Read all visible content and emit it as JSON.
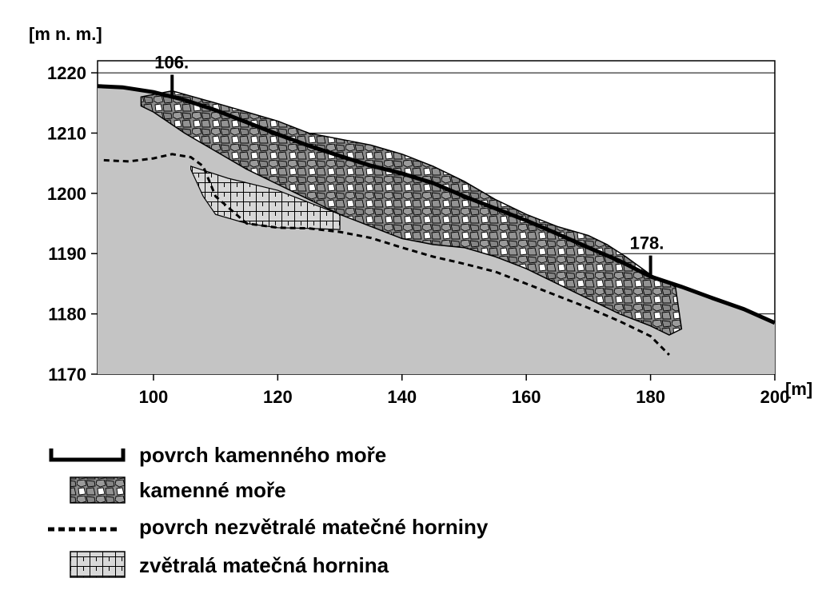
{
  "chart_data": {
    "type": "area",
    "title": "",
    "ylabel": "[m n. m.]",
    "xlabel": "[m]",
    "xlim": [
      91,
      200
    ],
    "ylim": [
      1170,
      1222
    ],
    "xticks": [
      100,
      120,
      140,
      160,
      180,
      200
    ],
    "yticks": [
      1170,
      1180,
      1190,
      1200,
      1210,
      1220
    ],
    "grid": "horizontal",
    "annotations": [
      {
        "label": "106.",
        "x": 103,
        "y": 1216.5
      },
      {
        "label": "178.",
        "x": 180,
        "y": 1186.5
      }
    ],
    "series": [
      {
        "name": "povrch kamenného moře",
        "x": [
          91,
          95,
          100,
          105,
          110,
          115,
          120,
          125,
          130,
          135,
          140,
          145,
          150,
          155,
          160,
          165,
          170,
          175,
          180,
          185,
          190,
          195,
          200
        ],
        "y": [
          1217.8,
          1217.6,
          1216.8,
          1215.5,
          1213.8,
          1211.8,
          1209.8,
          1207.9,
          1206.2,
          1204.6,
          1203.3,
          1201.7,
          1199.5,
          1197.5,
          1195.5,
          1193.3,
          1191.0,
          1188.8,
          1186.2,
          1184.5,
          1182.6,
          1180.8,
          1178.5
        ]
      },
      {
        "name": "kamenné moře",
        "top_x": [
          98,
          103,
          110,
          115,
          120,
          125,
          130,
          135,
          140,
          145,
          150,
          155,
          160,
          165,
          170,
          173,
          176,
          180,
          184
        ],
        "top_y": [
          1216.0,
          1217.0,
          1215.0,
          1213.5,
          1212.0,
          1210.0,
          1209.0,
          1208.0,
          1206.5,
          1204.5,
          1202.0,
          1199.0,
          1196.5,
          1194.5,
          1193.0,
          1191.5,
          1189.5,
          1186.5,
          1184.5
        ],
        "bottom_x": [
          185,
          183,
          180,
          175,
          170,
          165,
          160,
          155,
          150,
          145,
          140,
          135,
          130,
          125,
          120,
          115,
          110,
          105,
          100,
          98
        ],
        "bottom_y": [
          1177.5,
          1176.5,
          1178.0,
          1180.0,
          1182.5,
          1185.0,
          1187.5,
          1189.5,
          1191.0,
          1191.5,
          1192.5,
          1194.5,
          1196.5,
          1199.0,
          1201.5,
          1204.0,
          1207.0,
          1210.0,
          1213.5,
          1214.5
        ]
      },
      {
        "name": "povrch nezvětralé matečné horniny",
        "x": [
          92,
          96,
          100,
          103,
          106,
          108,
          110,
          115,
          120,
          125,
          130,
          135,
          140,
          145,
          150,
          155,
          160,
          165,
          170,
          175,
          180,
          183
        ],
        "y": [
          1205.5,
          1205.3,
          1205.8,
          1206.5,
          1206.0,
          1204.5,
          1199.5,
          1195.0,
          1194.3,
          1194.2,
          1193.6,
          1192.6,
          1191.0,
          1189.5,
          1188.3,
          1187.0,
          1185.0,
          1183.0,
          1181.0,
          1178.8,
          1176.3,
          1173.2
        ]
      },
      {
        "name": "zvětralá matečná hornina",
        "top_x": [
          106,
          112,
          120,
          125,
          130
        ],
        "top_y": [
          1204.5,
          1202.5,
          1200.5,
          1198.5,
          1196.5
        ],
        "bottom_x": [
          130,
          125,
          120,
          115,
          110,
          108,
          106
        ],
        "bottom_y": [
          1194.0,
          1194.2,
          1194.3,
          1195.0,
          1196.5,
          1199.5,
          1204.0
        ]
      }
    ],
    "legend": [
      {
        "label": "povrch kamenného moře",
        "symbol": "thick-line"
      },
      {
        "label": "kamenné moře",
        "symbol": "boulder-pattern"
      },
      {
        "label": "povrch nezvětralé matečné horniny",
        "symbol": "dashed-line"
      },
      {
        "label": "zvětralá matečná hornina",
        "symbol": "grid-pattern"
      }
    ],
    "colors": {
      "ground": "#c4c4c4",
      "boulder_fill": "#8c8c8c",
      "line": "#000000"
    }
  }
}
